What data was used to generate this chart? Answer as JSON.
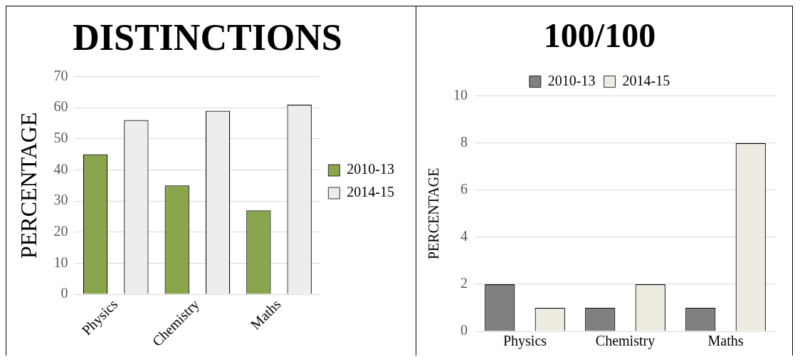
{
  "chart_data": [
    {
      "type": "bar",
      "title": "DISTINCTIONS",
      "ylabel": "PERCENTAGE",
      "categories": [
        "Physics",
        "Chemistry",
        "Maths"
      ],
      "series": [
        {
          "name": "2010-13",
          "color": "#8aa64d",
          "values": [
            45,
            35,
            27
          ]
        },
        {
          "name": "2014-15",
          "color": "#ededed",
          "values": [
            56,
            59,
            61
          ]
        }
      ],
      "ylim": [
        0,
        70
      ],
      "yticks": [
        0,
        10,
        20,
        30,
        40,
        50,
        60,
        70
      ],
      "grid": "y",
      "legend": "right"
    },
    {
      "type": "bar",
      "title": "100/100",
      "ylabel": "PERCENTAGE",
      "categories": [
        "Physics",
        "Chemistry",
        "Maths"
      ],
      "series": [
        {
          "name": "2010-13",
          "color": "#808080",
          "values": [
            2,
            1,
            1
          ]
        },
        {
          "name": "2014-15",
          "color": "#eeece1",
          "values": [
            1,
            2,
            8
          ]
        }
      ],
      "ylim": [
        0,
        10
      ],
      "yticks": [
        0,
        2,
        4,
        6,
        8,
        10
      ],
      "grid": "y",
      "legend": "top"
    }
  ]
}
